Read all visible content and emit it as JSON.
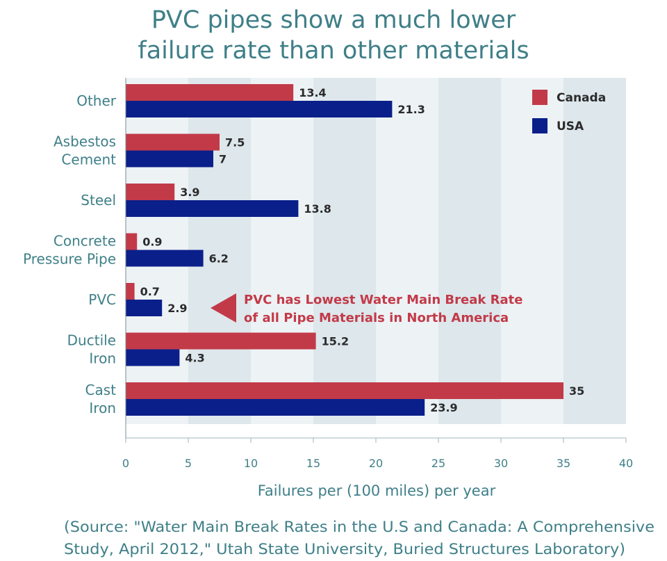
{
  "chart_data": {
    "type": "bar",
    "orientation": "horizontal",
    "title": [
      "PVC pipes show a much lower",
      "failure rate than other materials"
    ],
    "categories": [
      [
        "Other"
      ],
      [
        "Asbestos",
        "Cement"
      ],
      [
        "Steel"
      ],
      [
        "Concrete",
        "Pressure Pipe"
      ],
      [
        "PVC"
      ],
      [
        "Ductile",
        "Iron"
      ],
      [
        "Cast",
        "Iron"
      ]
    ],
    "series": [
      {
        "name": "Canada",
        "color": "#c23a48",
        "values": [
          13.4,
          7.5,
          3.9,
          0.9,
          0.7,
          15.2,
          35
        ]
      },
      {
        "name": "USA",
        "color": "#0a1f8a",
        "values": [
          21.3,
          7,
          13.8,
          6.2,
          2.9,
          4.3,
          23.9
        ]
      }
    ],
    "value_labels": [
      [
        "13.4",
        "7.5",
        "3.9",
        "0.9",
        "0.7",
        "15.2",
        "35"
      ],
      [
        "21.3",
        "7",
        "13.8",
        "6.2",
        "2.9",
        "4.3",
        "23.9"
      ]
    ],
    "xlabel": "Failures per (100 miles) per year",
    "xlim": [
      0,
      40
    ],
    "xticks": [
      0,
      5,
      10,
      15,
      20,
      25,
      30,
      35,
      40
    ],
    "legend": {
      "placement": "top-right"
    },
    "grid": "alternating vertical bands",
    "annotation": {
      "lines": [
        "PVC has Lowest Water Main Break Rate",
        "of all Pipe Materials in North America"
      ],
      "points_to_category": "PVC",
      "color": "#c23a48"
    },
    "source": [
      "(Source: \"Water Main Break Rates in the U.S and Canada: A Comprehensive",
      "Study, April 2012,\" Utah State University, Buried Structures Laboratory)"
    ]
  }
}
